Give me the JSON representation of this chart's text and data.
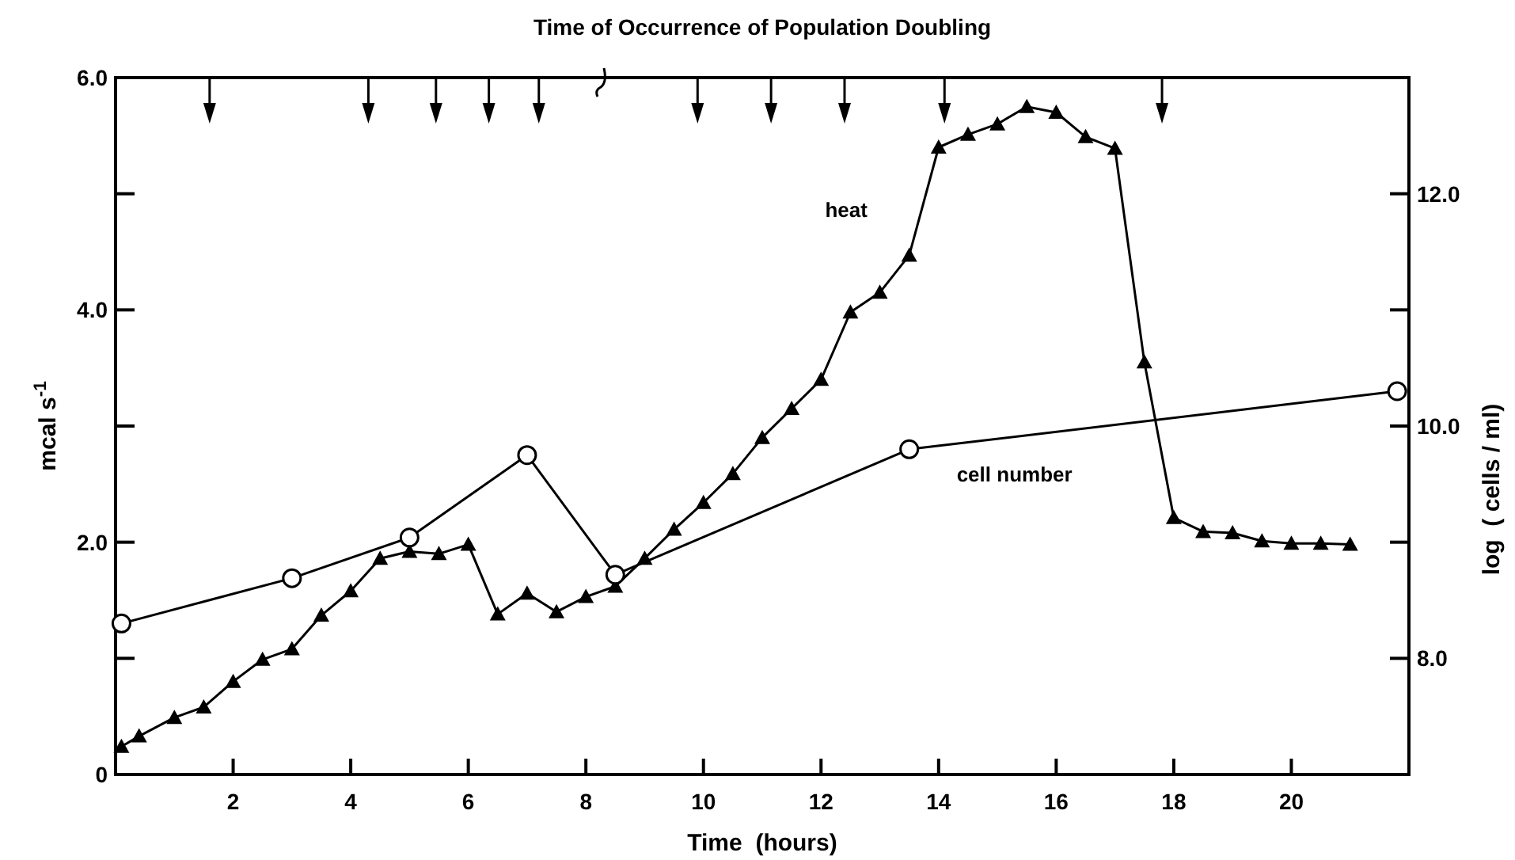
{
  "chart_data": {
    "type": "line",
    "title": "Time of Occurrence of Population Doubling",
    "xlabel": "Time  (hours)",
    "ylabel": "mcal s$^{-1}$",
    "y2label": "log  ( cells / ml)",
    "xlim": [
      0,
      22
    ],
    "xticks": [
      2,
      4,
      6,
      8,
      10,
      12,
      14,
      16,
      18,
      20
    ],
    "ylim": [
      0,
      6
    ],
    "yticks": [
      0,
      {
        "value": 1,
        "label": null
      },
      {
        "value": 2,
        "label": "2.0"
      },
      {
        "value": 3,
        "label": null
      },
      {
        "value": 4,
        "label": "4.0"
      },
      {
        "value": 5,
        "label": null
      },
      {
        "value": 6,
        "label": "6.0"
      }
    ],
    "y2lim": [
      7,
      13
    ],
    "y2ticks": [
      {
        "value": 8,
        "label": "8.0"
      },
      {
        "value": 9,
        "label": null
      },
      {
        "value": 10,
        "label": "10.0"
      },
      {
        "value": 11,
        "label": null
      },
      {
        "value": 12,
        "label": "12.0"
      }
    ],
    "grid": false,
    "line_style": "solid",
    "series": [
      {
        "name": "heat",
        "color": "#000000",
        "marker": "triangle",
        "x": [
          0.1,
          0.4,
          1,
          1.5,
          2,
          2.5,
          3,
          3.5,
          4,
          4.5,
          5,
          5.5,
          6,
          6.5,
          7,
          7.5,
          8,
          8.5,
          9,
          9.5,
          10,
          10.5,
          11,
          11.5,
          12,
          12.5,
          13,
          13.5,
          14,
          14.5,
          15,
          15.5,
          16,
          16.5,
          17,
          17.5,
          18,
          18.5,
          19,
          19.5,
          20,
          20.5,
          21
        ],
        "values": [
          0.24,
          0.33,
          0.49,
          0.58,
          0.8,
          0.99,
          1.08,
          1.37,
          1.58,
          1.86,
          1.92,
          1.9,
          1.98,
          1.38,
          1.56,
          1.4,
          1.53,
          1.62,
          1.86,
          2.11,
          2.34,
          2.59,
          2.9,
          3.15,
          3.4,
          3.98,
          4.15,
          4.47,
          5.4,
          5.51,
          5.6,
          5.75,
          5.7,
          5.49,
          5.39,
          3.55,
          2.21,
          2.09,
          2.08,
          2.01,
          1.99,
          1.99,
          1.98
        ]
      },
      {
        "name": "cell number",
        "color": "#000000",
        "marker": "circle",
        "axis": "y2",
        "x": [
          0.1,
          3,
          5,
          7,
          8.5,
          13.5,
          21.8
        ],
        "values": [
          8.3,
          8.69,
          9.04,
          9.75,
          8.72,
          9.8,
          10.3
        ]
      },
      {
        "type": "scatter",
        "color": "#000000",
        "marker": "triangle",
        "x": [
          1.6,
          4.3,
          5.45,
          6.35,
          7.2,
          9.9,
          11.15,
          12.4,
          14.1,
          17.8
        ],
        "values": [
          5.7,
          5.7,
          5.7,
          5.7,
          5.7,
          5.7,
          5.7,
          5.7,
          5.7,
          5.7
        ]
      }
    ],
    "legend": false
  }
}
